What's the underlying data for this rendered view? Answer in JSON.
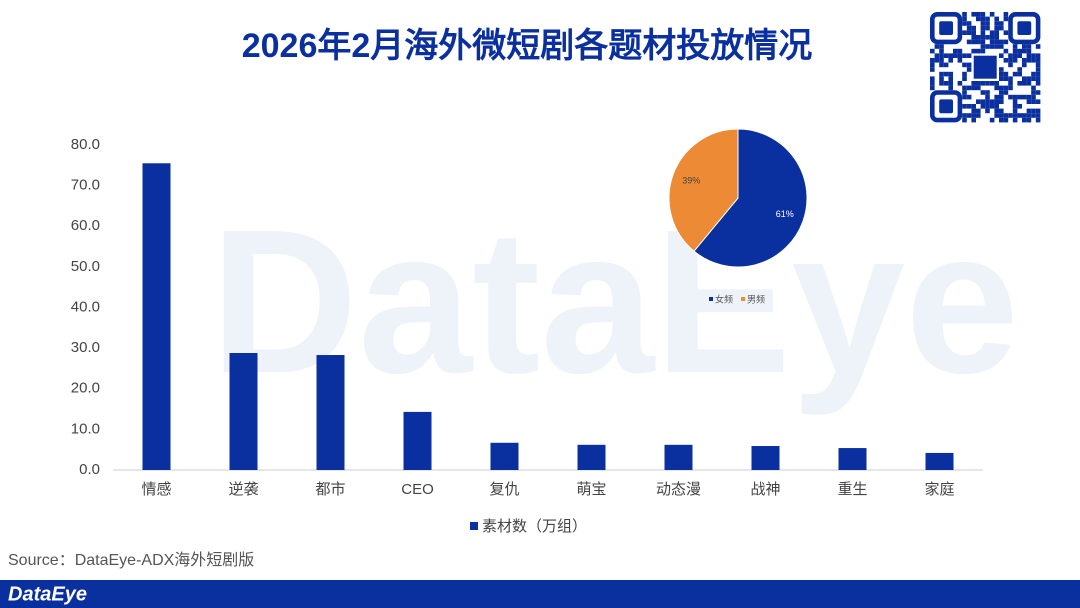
{
  "title": "2026年2月海外微短剧各题材投放情况",
  "watermark": "DataEye",
  "source": "Source：DataEye-ADX海外短剧版",
  "footer": {
    "brand": "DataEye"
  },
  "chart_data": [
    {
      "type": "bar",
      "categories": [
        "情感",
        "逆袭",
        "都市",
        "CEO",
        "复仇",
        "萌宝",
        "动态漫",
        "战神",
        "重生",
        "家庭"
      ],
      "series": [
        {
          "name": "素材数（万组）",
          "color": "#0a2f9e",
          "values": [
            75.5,
            28.8,
            28.3,
            14.3,
            6.7,
            6.2,
            6.2,
            5.9,
            5.4,
            4.2
          ]
        }
      ],
      "ylim": [
        0,
        80
      ],
      "yticks": [
        {
          "value": 0,
          "label": "0.0"
        },
        {
          "value": 10,
          "label": "10.0"
        },
        {
          "value": 20,
          "label": "20.0"
        },
        {
          "value": 30,
          "label": "30.0"
        },
        {
          "value": 40,
          "label": "40.0"
        },
        {
          "value": 50,
          "label": "50.0"
        },
        {
          "value": 60,
          "label": "60.0"
        },
        {
          "value": 70,
          "label": "70.0"
        },
        {
          "value": 80,
          "label": "80.0"
        }
      ],
      "legend": "bottom"
    },
    {
      "type": "pie",
      "categories": [
        "女频",
        "男频"
      ],
      "values": [
        61,
        39
      ],
      "value_labels": [
        "61%",
        "39%"
      ],
      "colors": [
        "#0a2f9e",
        "#ed8a35"
      ],
      "legend": "bottom"
    }
  ]
}
